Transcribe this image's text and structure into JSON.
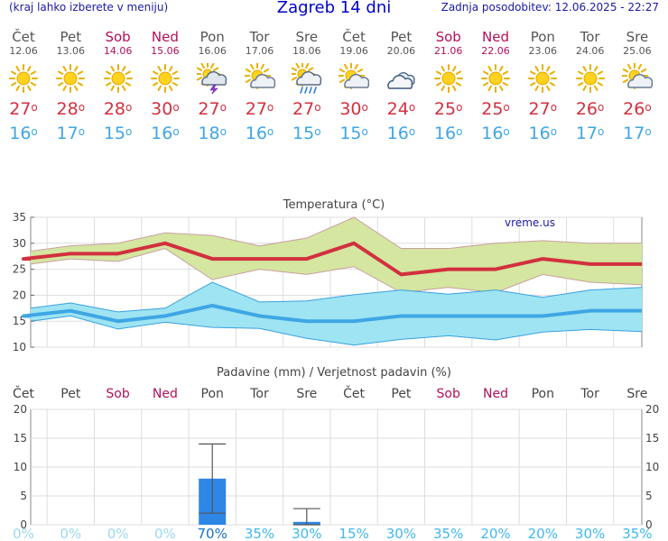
{
  "header": {
    "menu_note": "(kraj lahko izberete v meniju)",
    "title": "Zagreb 14 dni",
    "updated": "Zadnja posodobitev: 12.06.2025 - 22:27"
  },
  "days": [
    {
      "name": "Čet",
      "date": "12.06",
      "weekend": false,
      "icon": "sunny-icon",
      "tmax": "27",
      "tmin": "16"
    },
    {
      "name": "Pet",
      "date": "13.06",
      "weekend": false,
      "icon": "sunny-icon",
      "tmax": "28",
      "tmin": "17"
    },
    {
      "name": "Sob",
      "date": "14.06",
      "weekend": true,
      "icon": "sunny-icon",
      "tmax": "28",
      "tmin": "15"
    },
    {
      "name": "Ned",
      "date": "15.06",
      "weekend": true,
      "icon": "sunny-icon",
      "tmax": "30",
      "tmin": "16"
    },
    {
      "name": "Pon",
      "date": "16.06",
      "weekend": false,
      "icon": "thunderstorm-icon",
      "tmax": "27",
      "tmin": "18"
    },
    {
      "name": "Tor",
      "date": "17.06",
      "weekend": false,
      "icon": "partly-cloudy-icon",
      "tmax": "27",
      "tmin": "16"
    },
    {
      "name": "Sre",
      "date": "18.06",
      "weekend": false,
      "icon": "sun-cloud-rain-icon",
      "tmax": "27",
      "tmin": "15"
    },
    {
      "name": "Čet",
      "date": "19.06",
      "weekend": false,
      "icon": "partly-cloudy-icon",
      "tmax": "30",
      "tmin": "15"
    },
    {
      "name": "Pet",
      "date": "20.06",
      "weekend": false,
      "icon": "cloudy-icon",
      "tmax": "24",
      "tmin": "16"
    },
    {
      "name": "Sob",
      "date": "21.06",
      "weekend": true,
      "icon": "sunny-icon",
      "tmax": "25",
      "tmin": "16"
    },
    {
      "name": "Ned",
      "date": "22.06",
      "weekend": true,
      "icon": "sunny-icon",
      "tmax": "25",
      "tmin": "16"
    },
    {
      "name": "Pon",
      "date": "23.06",
      "weekend": false,
      "icon": "sunny-icon",
      "tmax": "27",
      "tmin": "16"
    },
    {
      "name": "Tor",
      "date": "24.06",
      "weekend": false,
      "icon": "sunny-icon",
      "tmax": "26",
      "tmin": "17"
    },
    {
      "name": "Sre",
      "date": "25.06",
      "weekend": false,
      "icon": "partly-cloudy-icon",
      "tmax": "26",
      "tmin": "17"
    }
  ],
  "colors": {
    "weekend": "#b0105a",
    "tmax": "#d2303f",
    "tmin": "#3fa6e4",
    "precip_bar": "#2e86e6",
    "warm_band": "#d4e6a0",
    "cold_band": "#9ee4f2",
    "precip_pct": "#3fb8f0"
  },
  "chart_data": [
    {
      "type": "line",
      "title": "Temperatura (°C)",
      "watermark": "vreme.us",
      "ylim": [
        10,
        35
      ],
      "yticks": [
        10,
        15,
        20,
        25,
        30,
        35
      ],
      "categories": [
        "Čet",
        "Pet",
        "Sob",
        "Ned",
        "Pon",
        "Tor",
        "Sre",
        "Čet",
        "Pet",
        "Sob",
        "Ned",
        "Pon",
        "Tor",
        "Sre"
      ],
      "series": [
        {
          "name": "max",
          "values": [
            27,
            28,
            28,
            30,
            27,
            27,
            27,
            30,
            24,
            25,
            25,
            27,
            26,
            26
          ],
          "band_low": [
            26,
            27,
            26.5,
            29,
            23,
            25,
            24,
            25.5,
            20.5,
            21.5,
            20.5,
            24,
            22.5,
            22
          ],
          "band_high": [
            28.5,
            29.5,
            30,
            32,
            31.5,
            29.5,
            31,
            35,
            29,
            29,
            30,
            30.5,
            30,
            30
          ]
        },
        {
          "name": "min",
          "values": [
            16,
            17,
            15,
            16,
            18,
            16,
            15,
            15,
            16,
            16,
            16,
            16,
            17,
            17
          ],
          "band_low": [
            15,
            16,
            13.5,
            14.8,
            13.8,
            13.6,
            11.7,
            10.4,
            11.5,
            12.2,
            11.4,
            12.9,
            13.4,
            13
          ],
          "band_high": [
            17.5,
            18.5,
            16.8,
            17.5,
            22.5,
            18.7,
            18.9,
            20.1,
            21,
            20.2,
            21,
            19.6,
            21,
            21.5
          ]
        }
      ]
    },
    {
      "type": "bar",
      "title": "Padavine (mm) / Verjetnost padavin (%)",
      "ylim": [
        0,
        20
      ],
      "yticks": [
        0,
        5,
        10,
        15,
        20
      ],
      "categories": [
        "Čet",
        "Pet",
        "Sob",
        "Ned",
        "Pon",
        "Tor",
        "Sre",
        "Čet",
        "Pet",
        "Sob",
        "Ned",
        "Pon",
        "Tor",
        "Sre"
      ],
      "values": [
        0,
        0,
        0,
        0,
        8,
        0,
        0.5,
        0,
        0,
        0,
        0,
        0,
        0,
        0
      ],
      "error_low": [
        null,
        null,
        null,
        null,
        2,
        null,
        0,
        null,
        null,
        null,
        null,
        null,
        null,
        null
      ],
      "error_high": [
        null,
        null,
        null,
        null,
        14,
        null,
        2.8,
        null,
        null,
        null,
        null,
        null,
        null,
        null
      ],
      "probability": [
        "0%",
        "0%",
        "0%",
        "0%",
        "70%",
        "35%",
        "30%",
        "15%",
        "30%",
        "35%",
        "20%",
        "20%",
        "30%",
        "35%"
      ],
      "probability_values": [
        0,
        0,
        0,
        0,
        70,
        35,
        30,
        15,
        30,
        35,
        20,
        20,
        30,
        35
      ]
    }
  ]
}
